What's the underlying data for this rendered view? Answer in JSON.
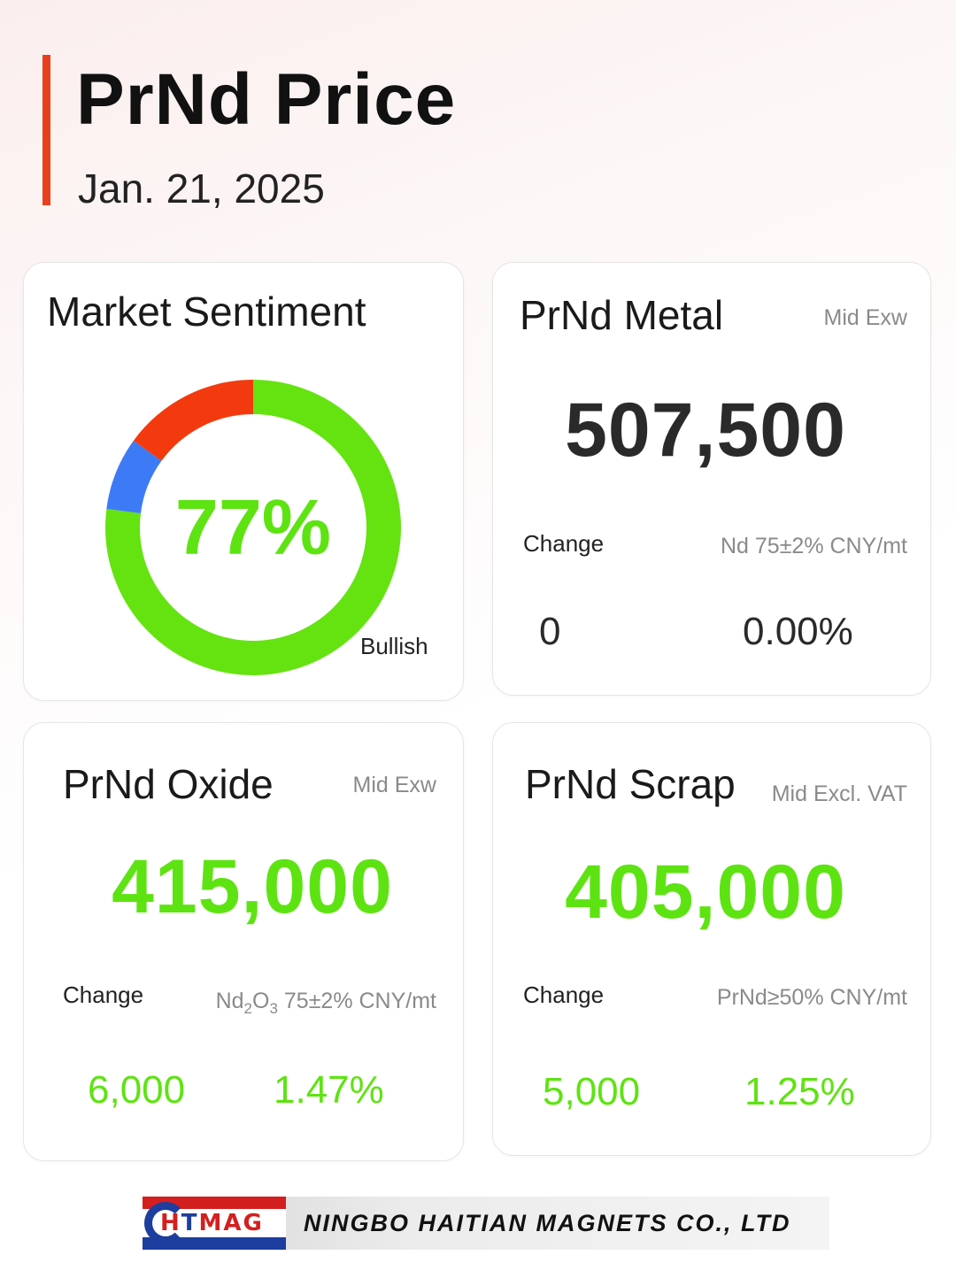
{
  "header": {
    "title": "PrNd Price",
    "date": "Jan. 21, 2025"
  },
  "sentiment": {
    "title": "Market Sentiment",
    "percent_label": "77%",
    "status_label": "Bullish",
    "segments": [
      {
        "name": "bullish",
        "percent": 77,
        "color": "#64e311"
      },
      {
        "name": "neutral",
        "percent": 8,
        "color": "#3d7bf6"
      },
      {
        "name": "bearish",
        "percent": 15,
        "color": "#f23a0e"
      }
    ]
  },
  "metal": {
    "title": "PrNd Metal",
    "tag": "Mid  Exw",
    "price": "507,500",
    "change_label": "Change",
    "spec": "Nd 75±2% CNY/mt",
    "change_value": "0",
    "change_percent": "0.00%"
  },
  "oxide": {
    "title": "PrNd Oxide",
    "tag": "Mid  Exw",
    "price": "415,000",
    "change_label": "Change",
    "spec_base": "Nd",
    "spec_sub1": "2",
    "spec_mid": "O",
    "spec_sub2": "3",
    "spec_rest": " 75±2% CNY/mt",
    "change_value": "6,000",
    "change_percent": "1.47%"
  },
  "scrap": {
    "title": "PrNd Scrap",
    "tag": "Mid  Excl. VAT",
    "price": "405,000",
    "change_label": "Change",
    "spec": "PrNd≥50% CNY/mt",
    "change_value": "5,000",
    "change_percent": "1.25%"
  },
  "footer": {
    "logo_h": "H",
    "logo_t": "T",
    "logo_mag": "MAG",
    "company": "NINGBO HAITIAN MAGNETS CO., LTD"
  },
  "colors": {
    "accent": "#e8401c",
    "green": "#5ee312"
  }
}
